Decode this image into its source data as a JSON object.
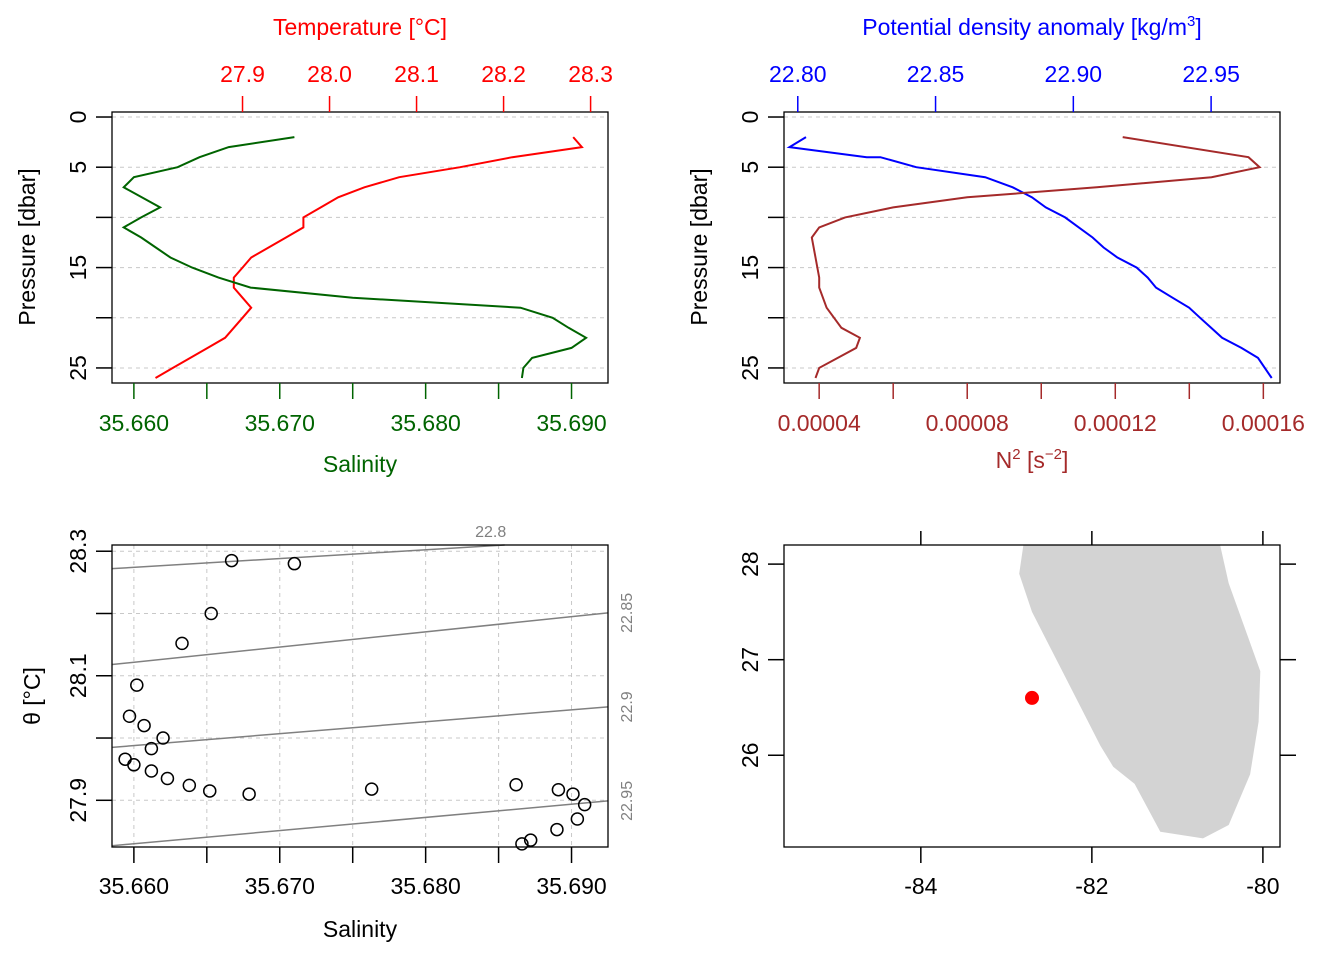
{
  "colors": {
    "temperature": "#ff0000",
    "salinity": "#006400",
    "density": "#0000ff",
    "n2": "#a52a2a",
    "grid": "#c8c8c8",
    "isopycnal": "#808080",
    "land": "#d3d3d3",
    "station": "#ff0000"
  },
  "chart_data": [
    {
      "type": "line",
      "panel": "profile-ts",
      "title": "",
      "top_axis": {
        "label": "Temperature [°C]",
        "range": [
          27.75,
          28.32
        ],
        "ticks": [
          27.9,
          28.0,
          28.1,
          28.2,
          28.3
        ],
        "tick_labels": [
          "27.9",
          "28.0",
          "28.1",
          "28.2",
          "28.3"
        ]
      },
      "bottom_axis": {
        "label": "Salinity",
        "range": [
          35.6585,
          35.6925
        ],
        "ticks": [
          35.66,
          35.665,
          35.67,
          35.675,
          35.68,
          35.685,
          35.69
        ],
        "tick_labels": [
          "35.660",
          "",
          "35.670",
          "",
          "35.680",
          "",
          "35.690"
        ]
      },
      "left_axis": {
        "label": "Pressure [dbar]",
        "range": [
          26.5,
          -0.5
        ],
        "reversed": true,
        "ticks": [
          0,
          5,
          10,
          15,
          20,
          25
        ],
        "tick_labels": [
          "0",
          "5",
          "",
          "15",
          "",
          "25"
        ]
      },
      "grid": true,
      "series": [
        {
          "name": "Temperature",
          "axis": "top",
          "points": [
            [
              28.28,
              2
            ],
            [
              28.29,
              3
            ],
            [
              28.21,
              4
            ],
            [
              28.15,
              5
            ],
            [
              28.08,
              6
            ],
            [
              28.04,
              7
            ],
            [
              28.01,
              8
            ],
            [
              27.99,
              9
            ],
            [
              27.97,
              10
            ],
            [
              27.97,
              11
            ],
            [
              27.95,
              12
            ],
            [
              27.93,
              13
            ],
            [
              27.91,
              14
            ],
            [
              27.9,
              15
            ],
            [
              27.89,
              16
            ],
            [
              27.89,
              17
            ],
            [
              27.9,
              18
            ],
            [
              27.91,
              19
            ],
            [
              27.9,
              20
            ],
            [
              27.89,
              21
            ],
            [
              27.88,
              22
            ],
            [
              27.86,
              23
            ],
            [
              27.84,
              24
            ],
            [
              27.82,
              25
            ],
            [
              27.8,
              26
            ]
          ]
        },
        {
          "name": "Salinity",
          "axis": "bottom",
          "points": [
            [
              35.671,
              2
            ],
            [
              35.6665,
              3
            ],
            [
              35.6645,
              4
            ],
            [
              35.663,
              5
            ],
            [
              35.66,
              6
            ],
            [
              35.6593,
              7
            ],
            [
              35.6618,
              9
            ],
            [
              35.6605,
              10
            ],
            [
              35.6593,
              11
            ],
            [
              35.6605,
              12
            ],
            [
              35.6615,
              13
            ],
            [
              35.6625,
              14
            ],
            [
              35.664,
              15
            ],
            [
              35.6658,
              16
            ],
            [
              35.668,
              17
            ],
            [
              35.675,
              18
            ],
            [
              35.6865,
              19
            ],
            [
              35.6887,
              20
            ],
            [
              35.6898,
              21
            ],
            [
              35.691,
              22
            ],
            [
              35.69,
              23
            ],
            [
              35.6873,
              24
            ],
            [
              35.6867,
              25
            ],
            [
              35.6866,
              26
            ]
          ]
        }
      ]
    },
    {
      "type": "line",
      "panel": "profile-density",
      "title": "",
      "top_axis": {
        "label": "Potential density anomaly [kg/m³]",
        "label_main": "Potential density anomaly [kg/m",
        "label_sup": "3",
        "label_end": "]",
        "range": [
          22.795,
          22.975
        ],
        "ticks": [
          22.8,
          22.85,
          22.9,
          22.95
        ],
        "tick_labels": [
          "22.80",
          "22.85",
          "22.90",
          "22.95"
        ]
      },
      "bottom_axis": {
        "label": "N² [s⁻²]",
        "label_main": "N",
        "label_sup": "2",
        "label_mid": " [s",
        "label_sup2": "−2",
        "label_end": "]",
        "range": [
          3.05e-05,
          0.0001645
        ],
        "ticks": [
          4e-05,
          6e-05,
          8e-05,
          0.0001,
          0.00012,
          0.00014,
          0.00016
        ],
        "tick_labels": [
          "0.00004",
          "",
          "0.00008",
          "",
          "0.00012",
          "",
          "0.00016"
        ]
      },
      "left_axis": {
        "label": "Pressure [dbar]",
        "range": [
          26.5,
          -0.5
        ],
        "reversed": true,
        "ticks": [
          0,
          5,
          10,
          15,
          20,
          25
        ],
        "tick_labels": [
          "0",
          "5",
          "",
          "15",
          "",
          "25"
        ]
      },
      "grid": true,
      "series": [
        {
          "name": "Potential density anomaly",
          "axis": "top",
          "points": [
            [
              22.803,
              2
            ],
            [
              22.797,
              3
            ],
            [
              22.825,
              4
            ],
            [
              22.83,
              4
            ],
            [
              22.843,
              5
            ],
            [
              22.868,
              6
            ],
            [
              22.878,
              7
            ],
            [
              22.885,
              8
            ],
            [
              22.89,
              9
            ],
            [
              22.897,
              10
            ],
            [
              22.902,
              11
            ],
            [
              22.907,
              12
            ],
            [
              22.911,
              13
            ],
            [
              22.916,
              14
            ],
            [
              22.923,
              15
            ],
            [
              22.927,
              16
            ],
            [
              22.93,
              17
            ],
            [
              22.936,
              18
            ],
            [
              22.942,
              19
            ],
            [
              22.946,
              20
            ],
            [
              22.95,
              21
            ],
            [
              22.954,
              22
            ],
            [
              22.961,
              23
            ],
            [
              22.967,
              24
            ],
            [
              22.972,
              26
            ]
          ]
        },
        {
          "name": "N2",
          "axis": "bottom",
          "points": [
            [
              0.000122,
              2
            ],
            [
              0.000156,
              4
            ],
            [
              0.000159,
              5
            ],
            [
              0.000146,
              6
            ],
            [
              0.000115,
              7
            ],
            [
              8e-05,
              8
            ],
            [
              6e-05,
              9
            ],
            [
              4.7e-05,
              10
            ],
            [
              4e-05,
              11
            ],
            [
              3.8e-05,
              12
            ],
            [
              3.9e-05,
              14
            ],
            [
              4e-05,
              16
            ],
            [
              4e-05,
              17
            ],
            [
              4.2e-05,
              19
            ],
            [
              4.6e-05,
              21
            ],
            [
              5.1e-05,
              22
            ],
            [
              5e-05,
              23
            ],
            [
              4e-05,
              25
            ],
            [
              3.9e-05,
              26
            ]
          ]
        }
      ]
    },
    {
      "type": "scatter",
      "panel": "ts-diagram",
      "title": "",
      "xlabel": "Salinity",
      "ylabel": "θ [°C]",
      "xlim": [
        35.6585,
        35.6925
      ],
      "ylim": [
        27.825,
        28.31
      ],
      "x_ticks": [
        35.66,
        35.665,
        35.67,
        35.675,
        35.68,
        35.685,
        35.69
      ],
      "x_tick_labels": [
        "35.660",
        "",
        "35.670",
        "",
        "35.680",
        "",
        "35.690"
      ],
      "y_ticks": [
        27.9,
        28.0,
        28.1,
        28.2,
        28.3
      ],
      "y_tick_labels": [
        "27.9",
        "",
        "28.1",
        "",
        "28.3"
      ],
      "grid": true,
      "points": [
        [
          35.6667,
          28.285
        ],
        [
          35.671,
          28.28
        ],
        [
          35.6653,
          28.2
        ],
        [
          35.6633,
          28.152
        ],
        [
          35.6602,
          28.085
        ],
        [
          35.6597,
          28.035
        ],
        [
          35.6607,
          28.02
        ],
        [
          35.662,
          28.0
        ],
        [
          35.6612,
          27.983
        ],
        [
          35.6594,
          27.966
        ],
        [
          35.66,
          27.957
        ],
        [
          35.6612,
          27.947
        ],
        [
          35.6623,
          27.935
        ],
        [
          35.6638,
          27.924
        ],
        [
          35.6652,
          27.915
        ],
        [
          35.6679,
          27.91
        ],
        [
          35.6763,
          27.918
        ],
        [
          35.6862,
          27.925
        ],
        [
          35.6891,
          27.917
        ],
        [
          35.6901,
          27.91
        ],
        [
          35.6909,
          27.893
        ],
        [
          35.6904,
          27.87
        ],
        [
          35.689,
          27.853
        ],
        [
          35.6872,
          27.836
        ],
        [
          35.6866,
          27.83
        ]
      ],
      "isopycnals": [
        {
          "label": "22.8",
          "value": 22.8,
          "line": [
            [
              35.6585,
              28.272
            ],
            [
              35.6925,
              28.32
            ]
          ]
        },
        {
          "label": "22.85",
          "value": 22.85,
          "line": [
            [
              35.6585,
              28.118
            ],
            [
              35.6925,
              28.201
            ]
          ]
        },
        {
          "label": "22.9",
          "value": 22.9,
          "line": [
            [
              35.6585,
              27.985
            ],
            [
              35.6925,
              28.05
            ]
          ]
        },
        {
          "label": "22.95",
          "value": 22.95,
          "line": [
            [
              35.6585,
              27.827
            ],
            [
              35.6925,
              27.899
            ]
          ]
        }
      ]
    },
    {
      "type": "map",
      "panel": "station-map",
      "title": "",
      "xlim": [
        -85.6,
        -79.8
      ],
      "ylim": [
        25.04,
        28.2
      ],
      "x_ticks": [
        -84,
        -82,
        -80
      ],
      "x_tick_labels": [
        "-84",
        "-82",
        "-80"
      ],
      "y_ticks": [
        26,
        27,
        28
      ],
      "y_tick_labels": [
        "26",
        "27",
        "28"
      ],
      "station": {
        "lon": -82.7,
        "lat": 26.6
      },
      "land": [
        [
          -82.8,
          28.2
        ],
        [
          -82.85,
          27.9
        ],
        [
          -82.7,
          27.5
        ],
        [
          -82.3,
          26.8
        ],
        [
          -81.9,
          26.1
        ],
        [
          -81.75,
          25.88
        ],
        [
          -81.5,
          25.7
        ],
        [
          -81.2,
          25.2
        ],
        [
          -80.7,
          25.13
        ],
        [
          -80.4,
          25.27
        ],
        [
          -80.15,
          25.8
        ],
        [
          -80.05,
          26.35
        ],
        [
          -80.03,
          26.88
        ],
        [
          -80.4,
          27.8
        ],
        [
          -80.5,
          28.2
        ]
      ]
    }
  ]
}
